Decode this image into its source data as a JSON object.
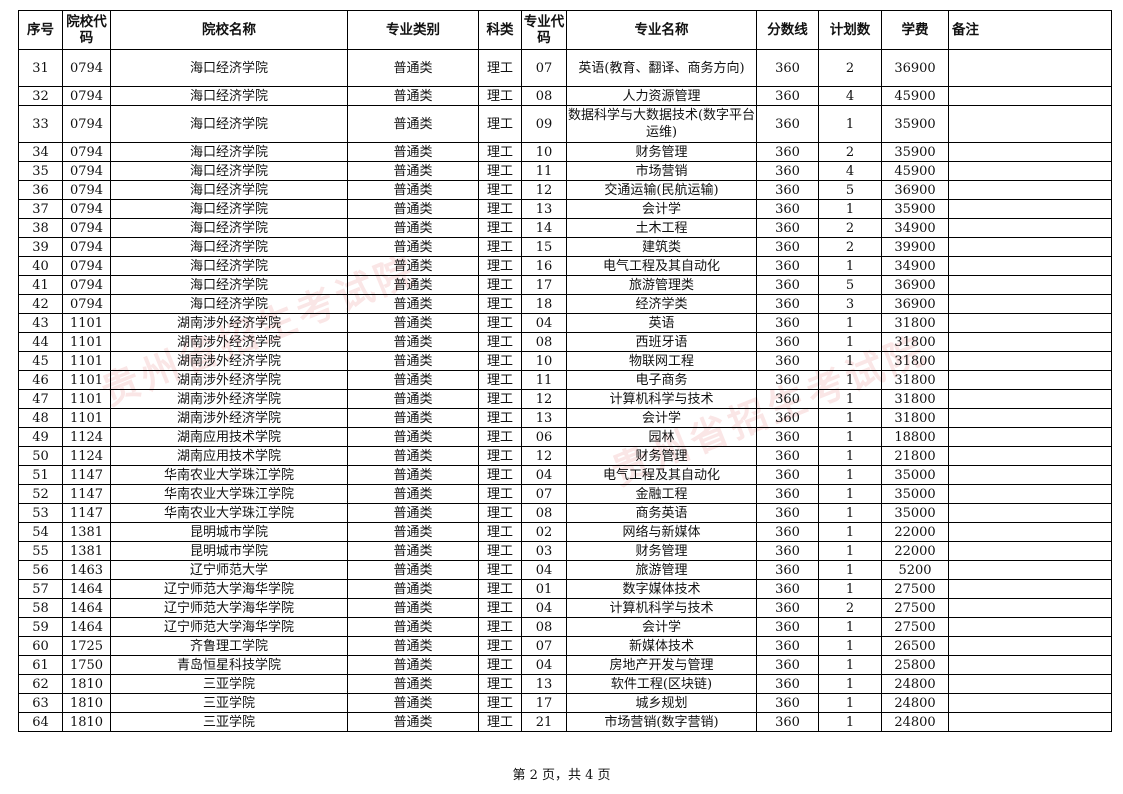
{
  "headers": [
    "序号",
    "院校代码",
    "院校名称",
    "专业类别",
    "科类",
    "专业代码",
    "专业名称",
    "分数线",
    "计划数",
    "学费",
    "备注"
  ],
  "rows": [
    [
      "31",
      "0794",
      "海口经济学院",
      "普通类",
      "理工",
      "07",
      "英语(教育、翻译、商务方向)",
      "360",
      "2",
      "36900",
      ""
    ],
    [
      "32",
      "0794",
      "海口经济学院",
      "普通类",
      "理工",
      "08",
      "人力资源管理",
      "360",
      "4",
      "45900",
      ""
    ],
    [
      "33",
      "0794",
      "海口经济学院",
      "普通类",
      "理工",
      "09",
      "数据科学与大数据技术(数字平台运维)",
      "360",
      "1",
      "35900",
      ""
    ],
    [
      "34",
      "0794",
      "海口经济学院",
      "普通类",
      "理工",
      "10",
      "财务管理",
      "360",
      "2",
      "35900",
      ""
    ],
    [
      "35",
      "0794",
      "海口经济学院",
      "普通类",
      "理工",
      "11",
      "市场营销",
      "360",
      "4",
      "45900",
      ""
    ],
    [
      "36",
      "0794",
      "海口经济学院",
      "普通类",
      "理工",
      "12",
      "交通运输(民航运输)",
      "360",
      "5",
      "36900",
      ""
    ],
    [
      "37",
      "0794",
      "海口经济学院",
      "普通类",
      "理工",
      "13",
      "会计学",
      "360",
      "1",
      "35900",
      ""
    ],
    [
      "38",
      "0794",
      "海口经济学院",
      "普通类",
      "理工",
      "14",
      "土木工程",
      "360",
      "2",
      "34900",
      ""
    ],
    [
      "39",
      "0794",
      "海口经济学院",
      "普通类",
      "理工",
      "15",
      "建筑类",
      "360",
      "2",
      "39900",
      ""
    ],
    [
      "40",
      "0794",
      "海口经济学院",
      "普通类",
      "理工",
      "16",
      "电气工程及其自动化",
      "360",
      "1",
      "34900",
      ""
    ],
    [
      "41",
      "0794",
      "海口经济学院",
      "普通类",
      "理工",
      "17",
      "旅游管理类",
      "360",
      "5",
      "36900",
      ""
    ],
    [
      "42",
      "0794",
      "海口经济学院",
      "普通类",
      "理工",
      "18",
      "经济学类",
      "360",
      "3",
      "36900",
      ""
    ],
    [
      "43",
      "1101",
      "湖南涉外经济学院",
      "普通类",
      "理工",
      "04",
      "英语",
      "360",
      "1",
      "31800",
      ""
    ],
    [
      "44",
      "1101",
      "湖南涉外经济学院",
      "普通类",
      "理工",
      "08",
      "西班牙语",
      "360",
      "1",
      "31800",
      ""
    ],
    [
      "45",
      "1101",
      "湖南涉外经济学院",
      "普通类",
      "理工",
      "10",
      "物联网工程",
      "360",
      "1",
      "31800",
      ""
    ],
    [
      "46",
      "1101",
      "湖南涉外经济学院",
      "普通类",
      "理工",
      "11",
      "电子商务",
      "360",
      "1",
      "31800",
      ""
    ],
    [
      "47",
      "1101",
      "湖南涉外经济学院",
      "普通类",
      "理工",
      "12",
      "计算机科学与技术",
      "360",
      "1",
      "31800",
      ""
    ],
    [
      "48",
      "1101",
      "湖南涉外经济学院",
      "普通类",
      "理工",
      "13",
      "会计学",
      "360",
      "1",
      "31800",
      ""
    ],
    [
      "49",
      "1124",
      "湖南应用技术学院",
      "普通类",
      "理工",
      "06",
      "园林",
      "360",
      "1",
      "18800",
      ""
    ],
    [
      "50",
      "1124",
      "湖南应用技术学院",
      "普通类",
      "理工",
      "12",
      "财务管理",
      "360",
      "1",
      "21800",
      ""
    ],
    [
      "51",
      "1147",
      "华南农业大学珠江学院",
      "普通类",
      "理工",
      "04",
      "电气工程及其自动化",
      "360",
      "1",
      "35000",
      ""
    ],
    [
      "52",
      "1147",
      "华南农业大学珠江学院",
      "普通类",
      "理工",
      "07",
      "金融工程",
      "360",
      "1",
      "35000",
      ""
    ],
    [
      "53",
      "1147",
      "华南农业大学珠江学院",
      "普通类",
      "理工",
      "08",
      "商务英语",
      "360",
      "1",
      "35000",
      ""
    ],
    [
      "54",
      "1381",
      "昆明城市学院",
      "普通类",
      "理工",
      "02",
      "网络与新媒体",
      "360",
      "1",
      "22000",
      ""
    ],
    [
      "55",
      "1381",
      "昆明城市学院",
      "普通类",
      "理工",
      "03",
      "财务管理",
      "360",
      "1",
      "22000",
      ""
    ],
    [
      "56",
      "1463",
      "辽宁师范大学",
      "普通类",
      "理工",
      "04",
      "旅游管理",
      "360",
      "1",
      "5200",
      ""
    ],
    [
      "57",
      "1464",
      "辽宁师范大学海华学院",
      "普通类",
      "理工",
      "01",
      "数字媒体技术",
      "360",
      "1",
      "27500",
      ""
    ],
    [
      "58",
      "1464",
      "辽宁师范大学海华学院",
      "普通类",
      "理工",
      "04",
      "计算机科学与技术",
      "360",
      "2",
      "27500",
      ""
    ],
    [
      "59",
      "1464",
      "辽宁师范大学海华学院",
      "普通类",
      "理工",
      "08",
      "会计学",
      "360",
      "1",
      "27500",
      ""
    ],
    [
      "60",
      "1725",
      "齐鲁理工学院",
      "普通类",
      "理工",
      "07",
      "新媒体技术",
      "360",
      "1",
      "26500",
      ""
    ],
    [
      "61",
      "1750",
      "青岛恒星科技学院",
      "普通类",
      "理工",
      "04",
      "房地产开发与管理",
      "360",
      "1",
      "25800",
      ""
    ],
    [
      "62",
      "1810",
      "三亚学院",
      "普通类",
      "理工",
      "13",
      "软件工程(区块链)",
      "360",
      "1",
      "24800",
      ""
    ],
    [
      "63",
      "1810",
      "三亚学院",
      "普通类",
      "理工",
      "17",
      "城乡规划",
      "360",
      "1",
      "24800",
      ""
    ],
    [
      "64",
      "1810",
      "三亚学院",
      "普通类",
      "理工",
      "21",
      "市场营销(数字营销)",
      "360",
      "1",
      "24800",
      ""
    ]
  ],
  "watermark": "贵州省招生考试院",
  "watermark_color": "#dc3c3c",
  "footer": "第 2 页，共 4 页"
}
